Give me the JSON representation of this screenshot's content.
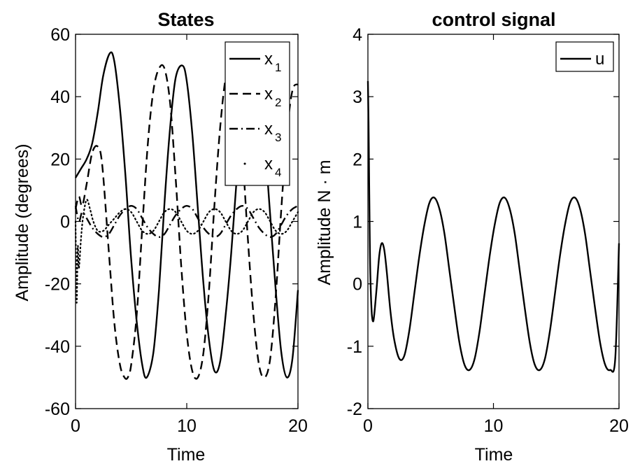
{
  "chart_data": [
    {
      "type": "line",
      "title": "States",
      "xlabel": "Time",
      "ylabel": "Amplitude (degrees)",
      "xlim": [
        0,
        20
      ],
      "ylim": [
        -60,
        60
      ],
      "xticks": [
        0,
        10,
        20
      ],
      "xtick_labels": [
        "0",
        "10",
        "20"
      ],
      "yticks": [
        -60,
        -40,
        -20,
        0,
        20,
        40,
        60
      ],
      "ytick_labels": [
        "-60",
        "-40",
        "-20",
        "0",
        "20",
        "40",
        "60"
      ],
      "legend": {
        "location": "top-right",
        "entries": [
          {
            "base": "x",
            "sub": "1"
          },
          {
            "base": "x",
            "sub": "2"
          },
          {
            "base": "x",
            "sub": "3"
          },
          {
            "base": "x",
            "sub": "4"
          }
        ]
      },
      "series": [
        {
          "name": "x1",
          "style": "solid",
          "color": "#000000",
          "x": [
            0,
            0.5,
            1.0,
            1.5,
            2.0,
            2.5,
            3.1,
            3.5,
            4.0,
            4.5,
            5.0,
            5.5,
            6.0,
            6.4,
            7.0,
            7.5,
            8.0,
            8.5,
            9.0,
            9.6,
            10.0,
            10.5,
            11.0,
            11.5,
            12.0,
            12.5,
            13.0,
            13.5,
            14.0,
            14.5,
            15.0,
            15.5,
            16.0,
            16.5,
            17.0,
            17.5,
            18.0,
            18.5,
            19.0,
            19.5,
            20.0
          ],
          "y": [
            14,
            17,
            20,
            25,
            35,
            47,
            54,
            51,
            36,
            14,
            -12,
            -32,
            -46,
            -50,
            -42,
            -22,
            6,
            30,
            46,
            50,
            45,
            28,
            4,
            -20,
            -38,
            -48,
            -45,
            -30,
            -10,
            14,
            36,
            48,
            50,
            43,
            26,
            2,
            -22,
            -42,
            -50,
            -44,
            -22
          ]
        },
        {
          "name": "x2",
          "style": "dashed",
          "color": "#000000",
          "x": [
            0,
            0.3,
            0.6,
            1.0,
            1.5,
            2.0,
            2.4,
            3.0,
            3.5,
            4.0,
            4.4,
            4.7,
            5.0,
            5.5,
            6.0,
            6.5,
            7.0,
            7.5,
            8.0,
            8.5,
            9.0,
            9.5,
            10.0,
            10.5,
            11.0,
            11.5,
            12.0,
            12.5,
            13.0,
            13.5,
            14.0,
            14.5,
            15.0,
            15.5,
            16.0,
            16.5,
            17.0,
            17.5,
            18.0,
            18.5,
            19.0,
            19.5,
            20.0
          ],
          "y": [
            4,
            8,
            5,
            12,
            22,
            24,
            18,
            -10,
            -33,
            -46,
            -50,
            -50,
            -46,
            -30,
            -2,
            25,
            42,
            49,
            49,
            38,
            14,
            -14,
            -36,
            -48,
            -50,
            -42,
            -22,
            6,
            30,
            46,
            50,
            42,
            22,
            -6,
            -30,
            -46,
            -50,
            -44,
            -24,
            4,
            28,
            42,
            44
          ]
        },
        {
          "name": "x3",
          "style": "dashdot",
          "color": "#000000",
          "x": [
            0,
            0.3,
            0.6,
            1.0,
            1.5,
            2.0,
            2.5,
            3.0,
            3.5,
            4.0,
            4.5,
            5.0,
            5.5,
            6.0,
            6.5,
            7.0,
            7.5,
            8.0,
            8.5,
            9.0,
            9.5,
            10.0,
            10.5,
            11.0,
            11.5,
            12.0,
            12.5,
            13.0,
            13.5,
            14.0,
            14.5,
            15.0,
            15.5,
            16.0,
            16.5,
            17.0,
            17.5,
            18.0,
            18.5,
            19.0,
            19.5,
            20.0
          ],
          "y": [
            5,
            0,
            3,
            1,
            -2,
            -4,
            -5,
            -4,
            -1,
            2,
            4,
            5,
            4,
            1,
            -2,
            -4,
            -5,
            -4,
            -1,
            2,
            4,
            5,
            4,
            1,
            -2,
            -4,
            -5,
            -4,
            -1,
            2,
            4,
            5,
            4,
            1,
            -2,
            -4,
            -5,
            -4,
            -1,
            2,
            4,
            5
          ]
        },
        {
          "name": "x4",
          "style": "dotted",
          "color": "#000000",
          "x": [
            0,
            0.1,
            0.2,
            0.3,
            0.5,
            0.7,
            1.0,
            1.3,
            1.6,
            2.0,
            2.5,
            3.0,
            3.5,
            4.0,
            4.5,
            5.0,
            5.5,
            6.0,
            6.5,
            7.0,
            7.5,
            8.0,
            8.5,
            9.0,
            9.5,
            10.0,
            10.5,
            11.0,
            11.5,
            12.0,
            12.5,
            13.0,
            13.5,
            14.0,
            14.5,
            15.0,
            15.5,
            16.0,
            16.5,
            17.0,
            17.5,
            18.0,
            18.5,
            19.0,
            19.5,
            20.0
          ],
          "y": [
            0,
            -26,
            -8,
            -15,
            -5,
            2,
            7,
            4,
            0,
            -3,
            -3,
            -1,
            1,
            3,
            4,
            3,
            0,
            -3,
            -4,
            -3,
            0,
            3,
            4,
            3,
            0,
            -3,
            -4,
            -3,
            0,
            3,
            4,
            3,
            0,
            -3,
            -4,
            -3,
            0,
            3,
            4,
            3,
            0,
            -3,
            -4,
            -3,
            0,
            3
          ]
        }
      ]
    },
    {
      "type": "line",
      "title": "control signal",
      "xlabel": "Time",
      "ylabel": "Amplitude N · m",
      "xlim": [
        0,
        20
      ],
      "ylim": [
        -2,
        4
      ],
      "xticks": [
        0,
        10,
        20
      ],
      "xtick_labels": [
        "0",
        "10",
        "20"
      ],
      "yticks": [
        -2,
        -1,
        0,
        1,
        2,
        3,
        4
      ],
      "ytick_labels": [
        "-2",
        "-1",
        "0",
        "1",
        "2",
        "3",
        "4"
      ],
      "legend": {
        "location": "top-right",
        "entries": [
          {
            "base": "u",
            "sub": ""
          }
        ]
      },
      "series": [
        {
          "name": "u",
          "style": "solid",
          "color": "#000000",
          "x": [
            0,
            0.05,
            0.1,
            0.15,
            0.2,
            0.3,
            0.4,
            0.5,
            0.7,
            0.9,
            1.1,
            1.3,
            1.5,
            1.8,
            2.1,
            2.5,
            2.9,
            3.3,
            3.7,
            4.1,
            4.5,
            4.9,
            5.3,
            5.7,
            6.1,
            6.5,
            6.9,
            7.3,
            7.7,
            8.1,
            8.5,
            8.9,
            9.3,
            9.7,
            10.1,
            10.5,
            10.9,
            11.3,
            11.7,
            12.1,
            12.5,
            12.9,
            13.3,
            13.7,
            14.1,
            14.5,
            14.9,
            15.3,
            15.7,
            16.1,
            16.5,
            16.9,
            17.3,
            17.7,
            18.1,
            18.5,
            18.9,
            19.3,
            19.7,
            20.0
          ],
          "y": [
            3.25,
            2.6,
            1.6,
            0.7,
            0.1,
            -0.45,
            -0.6,
            -0.5,
            -0.05,
            0.45,
            0.65,
            0.55,
            0.2,
            -0.45,
            -0.9,
            -1.2,
            -1.15,
            -0.75,
            -0.15,
            0.45,
            0.95,
            1.3,
            1.38,
            1.2,
            0.8,
            0.2,
            -0.4,
            -0.95,
            -1.3,
            -1.38,
            -1.2,
            -0.75,
            -0.15,
            0.45,
            0.95,
            1.3,
            1.38,
            1.2,
            0.8,
            0.2,
            -0.4,
            -0.95,
            -1.3,
            -1.38,
            -1.2,
            -0.75,
            -0.15,
            0.45,
            0.95,
            1.3,
            1.38,
            1.2,
            0.8,
            0.2,
            -0.4,
            -0.95,
            -1.3,
            -1.38,
            -1.2,
            0.65
          ]
        }
      ]
    }
  ]
}
